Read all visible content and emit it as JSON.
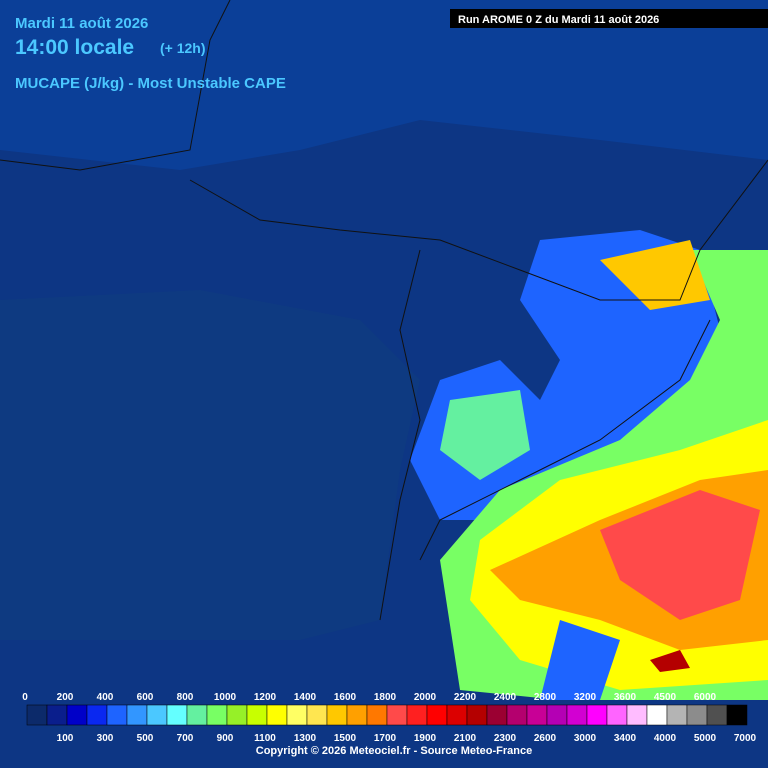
{
  "header": {
    "date": "Mardi 11 août 2026",
    "time": "14:00 locale",
    "lead": "(+ 12h)",
    "parameter": "MUCAPE (J/kg) - Most Unstable CAPE",
    "run": "Run AROME 0 Z du Mardi 11 août 2026"
  },
  "legend": {
    "labels": [
      "0",
      "100",
      "200",
      "300",
      "400",
      "500",
      "600",
      "700",
      "800",
      "900",
      "1000",
      "1100",
      "1200",
      "1300",
      "1400",
      "1500",
      "1600",
      "1700",
      "1800",
      "1900",
      "2000",
      "2100",
      "2200",
      "2300",
      "2400",
      "2600",
      "2800",
      "3000",
      "3200",
      "3400",
      "3600",
      "4000",
      "4500",
      "5000",
      "6000",
      "7000"
    ],
    "colors": [
      "#0c2a6a",
      "#0a1e8c",
      "#0000c8",
      "#0a28f0",
      "#1e64ff",
      "#3296ff",
      "#4bc8ff",
      "#64ffff",
      "#64f0a0",
      "#78ff64",
      "#96f028",
      "#c8ff00",
      "#ffff00",
      "#ffff64",
      "#ffe650",
      "#ffc800",
      "#ffa000",
      "#ff7800",
      "#ff4a4a",
      "#ff2020",
      "#ff0000",
      "#dc0000",
      "#b40000",
      "#9b0032",
      "#b4006e",
      "#c80096",
      "#b400b4",
      "#d200d2",
      "#ff00ff",
      "#ff64ff",
      "#ffbcff",
      "#ffffff",
      "#b4b4b4",
      "#8c8c8c",
      "#505050",
      "#000000"
    ]
  },
  "footer": {
    "copyright": "Copyright © 2026 Meteociel.fr - Source Meteo-France"
  }
}
